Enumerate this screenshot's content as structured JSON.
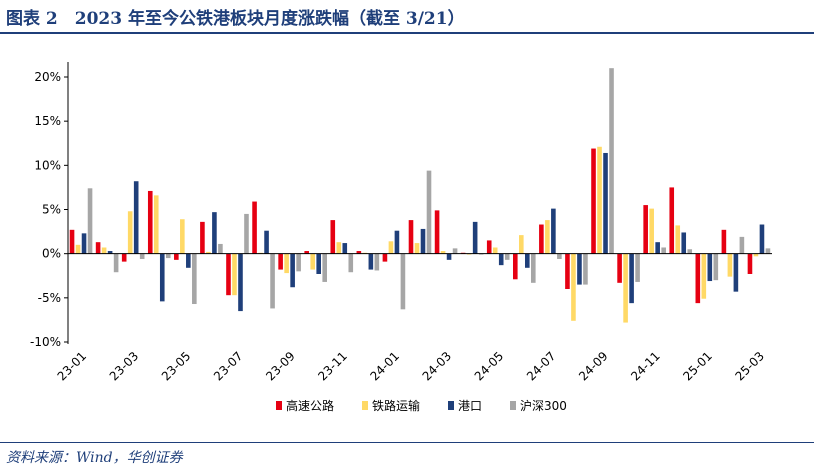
{
  "header": {
    "title": "图表 2　2023 年至今公铁港板块月度涨跌幅（截至 3/21）"
  },
  "footer": {
    "source": "资料来源：Wind，华创证券"
  },
  "colors": {
    "title": "#1f3f7a",
    "series": [
      "#e60012",
      "#ffd966",
      "#1f3f7a",
      "#a6a6a6"
    ]
  },
  "chart_data": {
    "type": "bar",
    "categories": [
      "23-01",
      "23-02",
      "23-03",
      "23-04",
      "23-05",
      "23-06",
      "23-07",
      "23-08",
      "23-09",
      "23-10",
      "23-11",
      "23-12",
      "24-01",
      "24-02",
      "24-03",
      "24-04",
      "24-05",
      "24-06",
      "24-07",
      "24-08",
      "24-09",
      "24-10",
      "24-11",
      "24-12",
      "25-01",
      "25-02",
      "25-03"
    ],
    "x_tick_labels": [
      "23-01",
      "23-03",
      "23-05",
      "23-07",
      "23-09",
      "23-11",
      "24-01",
      "24-03",
      "24-05",
      "24-07",
      "24-09",
      "24-11",
      "25-01",
      "25-03"
    ],
    "y_ticks": [
      "-10%",
      "-5%",
      "0%",
      "5%",
      "10%",
      "15%",
      "20%"
    ],
    "ylim": [
      -10,
      22
    ],
    "legend_position": "bottom",
    "series": [
      {
        "name": "高速公路",
        "values": [
          2.7,
          1.3,
          -0.9,
          7.1,
          -0.7,
          3.6,
          -4.7,
          5.9,
          -1.8,
          0.3,
          3.8,
          0.3,
          -0.9,
          3.8,
          4.9,
          0.1,
          1.5,
          -2.9,
          3.3,
          -4.0,
          11.9,
          -3.3,
          5.5,
          7.5,
          -5.6,
          2.7,
          -2.3
        ]
      },
      {
        "name": "铁路运输",
        "values": [
          1.0,
          0.7,
          4.8,
          6.6,
          3.9,
          0.2,
          -4.7,
          0.1,
          -2.2,
          -1.8,
          1.3,
          0.1,
          1.4,
          1.2,
          0.3,
          -0.1,
          0.7,
          2.1,
          3.8,
          -7.6,
          12.1,
          -7.8,
          5.1,
          3.2,
          -5.1,
          -2.6,
          -0.3
        ]
      },
      {
        "name": "港口",
        "values": [
          2.3,
          0.3,
          8.2,
          -5.4,
          -1.6,
          4.7,
          -6.5,
          2.6,
          -3.8,
          -2.3,
          1.2,
          -1.8,
          2.6,
          2.8,
          -0.7,
          3.6,
          -1.3,
          -1.6,
          5.1,
          -3.5,
          11.4,
          -5.6,
          1.3,
          2.4,
          -3.1,
          -4.3,
          3.3
        ]
      },
      {
        "name": "沪深300",
        "values": [
          7.4,
          -2.1,
          -0.6,
          -0.5,
          -5.7,
          1.1,
          4.5,
          -6.2,
          -2.0,
          -3.2,
          -2.1,
          -1.9,
          -6.3,
          9.4,
          0.6,
          -0.1,
          -0.7,
          -3.3,
          -0.6,
          -3.5,
          21.0,
          -3.2,
          0.7,
          0.5,
          -3.0,
          1.9,
          0.6
        ]
      }
    ]
  }
}
